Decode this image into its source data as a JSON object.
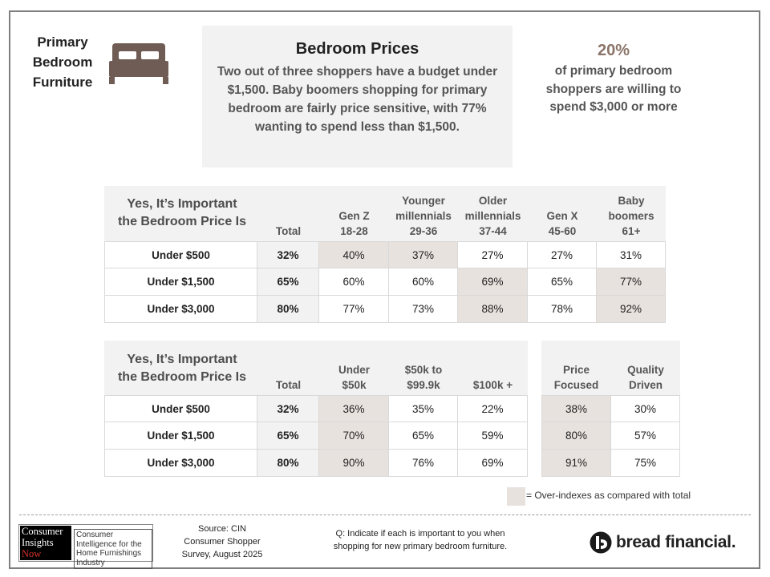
{
  "section_title": [
    "Primary",
    "Bedroom",
    "Furniture"
  ],
  "icons": {
    "bed": "bed-icon",
    "bread_mark": "bread-financial-mark-icon"
  },
  "summary": {
    "title": "Bedroom Prices",
    "text": "Two out of three shoppers have a budget under $1,500. Baby boomers shopping for primary bedroom are fairly price sensitive, with 77% wanting to spend less than $1,500."
  },
  "stat": {
    "number": "20%",
    "text": "of primary bedroom shoppers are willing to spend $3,000 or more"
  },
  "colors": {
    "highlight": "#e8e2de",
    "header_bg": "#f2f2f2",
    "accent": "#8b7469"
  },
  "table1": {
    "question": [
      "Yes, It’s Important",
      "the Bedroom Price Is"
    ],
    "columns": [
      {
        "lines": [
          "Total"
        ]
      },
      {
        "lines": [
          "Gen Z",
          "18-28"
        ]
      },
      {
        "lines": [
          "Younger",
          "millennials",
          "29-36"
        ]
      },
      {
        "lines": [
          "Older",
          "millennials",
          "37-44"
        ]
      },
      {
        "lines": [
          "Gen X",
          "45-60"
        ]
      },
      {
        "lines": [
          "Baby",
          "boomers",
          "61+"
        ]
      }
    ],
    "rows": [
      {
        "label": "Under $500",
        "values": [
          "32%",
          "40%",
          "37%",
          "27%",
          "27%",
          "31%"
        ],
        "highlight": [
          false,
          true,
          true,
          false,
          false,
          false
        ]
      },
      {
        "label": "Under $1,500",
        "values": [
          "65%",
          "60%",
          "60%",
          "69%",
          "65%",
          "77%"
        ],
        "highlight": [
          false,
          false,
          false,
          true,
          false,
          true
        ]
      },
      {
        "label": "Under $3,000",
        "values": [
          "80%",
          "77%",
          "73%",
          "88%",
          "78%",
          "92%"
        ],
        "highlight": [
          false,
          false,
          false,
          true,
          false,
          true
        ]
      }
    ]
  },
  "table2": {
    "question": [
      "Yes, It’s Important",
      "the Bedroom Price Is"
    ],
    "columns": [
      {
        "lines": [
          "Total"
        ]
      },
      {
        "lines": [
          "Under",
          "$50k"
        ]
      },
      {
        "lines": [
          "$50k to",
          "$99.9k"
        ]
      },
      {
        "lines": [
          "$100k +"
        ]
      }
    ],
    "rows": [
      {
        "label": "Under $500",
        "values": [
          "32%",
          "36%",
          "35%",
          "22%"
        ],
        "highlight": [
          false,
          true,
          false,
          false
        ]
      },
      {
        "label": "Under $1,500",
        "values": [
          "65%",
          "70%",
          "65%",
          "59%"
        ],
        "highlight": [
          false,
          true,
          false,
          false
        ]
      },
      {
        "label": "Under $3,000",
        "values": [
          "80%",
          "90%",
          "76%",
          "69%"
        ],
        "highlight": [
          false,
          true,
          false,
          false
        ]
      }
    ]
  },
  "table3": {
    "columns": [
      {
        "lines": [
          "Price",
          "Focused"
        ]
      },
      {
        "lines": [
          "Quality",
          "Driven"
        ]
      }
    ],
    "rows": [
      {
        "values": [
          "38%",
          "30%"
        ],
        "highlight": [
          true,
          false
        ]
      },
      {
        "values": [
          "80%",
          "57%"
        ],
        "highlight": [
          true,
          false
        ]
      },
      {
        "values": [
          "91%",
          "75%"
        ],
        "highlight": [
          true,
          false
        ]
      }
    ]
  },
  "legend": {
    "text": "= Over-indexes as compared with total"
  },
  "footer": {
    "cin_logo": [
      "Consumer",
      "Insights",
      "Now"
    ],
    "cin_tagline": "Consumer Intelligence for the Home Furnishings Industry",
    "source": [
      "Source: CIN",
      "Consumer Shopper",
      "Survey, August 2025"
    ],
    "question": [
      "Q: Indicate if each is important to you when",
      "shopping for new primary bedroom furniture."
    ],
    "brand": "bread financial."
  }
}
